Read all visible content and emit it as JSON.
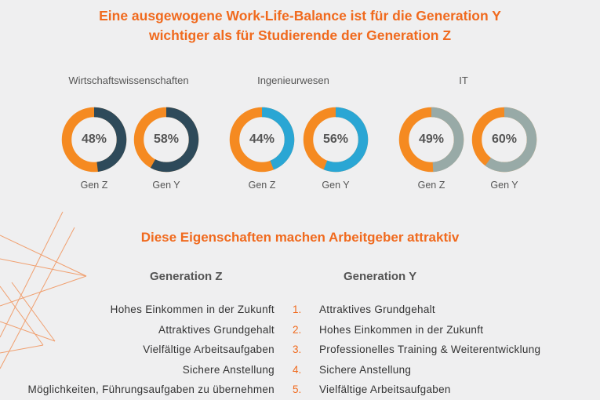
{
  "header": {
    "title_line1": "Eine ausgewogene Work-Life-Balance ist für die Generation Y",
    "title_line2": "wichtiger als für Studierende der Generation Z"
  },
  "chart_data": {
    "type": "pie",
    "groups": [
      {
        "name": "Wirtschaftswissenschaften",
        "series": [
          {
            "name": "Gen Z",
            "value": 48,
            "label": "48%"
          },
          {
            "name": "Gen Y",
            "value": 58,
            "label": "58%"
          }
        ],
        "value_color": "#2e4a5a"
      },
      {
        "name": "Ingenieurwesen",
        "series": [
          {
            "name": "Gen Z",
            "value": 44,
            "label": "44%"
          },
          {
            "name": "Gen Y",
            "value": 56,
            "label": "56%"
          }
        ],
        "value_color": "#2aa6d4"
      },
      {
        "name": "IT",
        "series": [
          {
            "name": "Gen Z",
            "value": 49,
            "label": "49%"
          },
          {
            "name": "Gen Y",
            "value": 60,
            "label": "60%"
          }
        ],
        "value_color": "#98aaa7"
      }
    ],
    "remainder_color": "#f58a21"
  },
  "ranking": {
    "title": "Diese Eigenschaften machen Arbeitgeber attraktiv",
    "gen_z_header": "Generation Z",
    "gen_y_header": "Generation Y",
    "numbers": [
      "1.",
      "2.",
      "3.",
      "4.",
      "5."
    ],
    "gen_z": [
      "Hohes Einkommen in der Zukunft",
      "Attraktives Grundgehalt",
      "Vielfältige Arbeitsaufgaben",
      "Sichere Anstellung",
      "Möglichkeiten, Führungsaufgaben zu übernehmen"
    ],
    "gen_y": [
      "Attraktives Grundgehalt",
      "Hohes Einkommen in der Zukunft",
      "Professionelles Training & Weiterentwicklung",
      "Sichere Anstellung",
      "Vielfältige Arbeitsaufgaben"
    ]
  },
  "colors": {
    "accent": "#f06a1e",
    "deco_line": "#f0a070"
  }
}
